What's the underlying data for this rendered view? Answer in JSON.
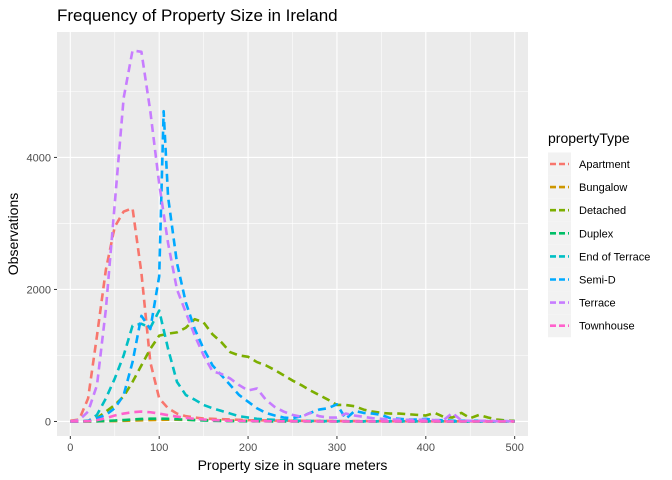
{
  "chart_data": {
    "type": "line",
    "title": "Frequency of Property Size in Ireland",
    "xlabel": "Property size in square meters",
    "ylabel": "Observations",
    "xlim": [
      -15,
      515
    ],
    "ylim": [
      -220,
      5900
    ],
    "x_ticks": [
      0,
      100,
      200,
      300,
      400,
      500
    ],
    "x_tick_labels": [
      "0",
      "100",
      "200",
      "300",
      "400",
      "500"
    ],
    "y_ticks": [
      0,
      2000,
      4000
    ],
    "y_tick_labels": [
      "0",
      "2000",
      "4000"
    ],
    "grid": true,
    "legend_position": "right",
    "legend_title": "propertyType",
    "series": [
      {
        "name": "Apartment",
        "color": "#F8766D",
        "x": [
          0,
          10,
          20,
          30,
          40,
          50,
          60,
          70,
          80,
          90,
          100,
          110,
          120,
          130,
          140,
          150,
          160,
          170,
          180,
          190,
          200,
          210,
          220,
          230,
          240,
          250,
          260,
          270,
          280,
          290,
          300,
          310,
          320,
          330,
          340,
          350,
          360,
          370,
          380,
          390,
          400,
          410,
          420,
          430,
          440,
          450,
          460,
          470,
          480,
          490,
          500
        ],
        "y": [
          10,
          30,
          350,
          1300,
          2300,
          2950,
          3180,
          3230,
          2250,
          900,
          350,
          200,
          120,
          80,
          60,
          45,
          40,
          35,
          30,
          25,
          20,
          18,
          16,
          14,
          12,
          10,
          10,
          9,
          8,
          8,
          7,
          7,
          6,
          6,
          5,
          5,
          5,
          4,
          4,
          4,
          4,
          3,
          3,
          3,
          3,
          3,
          3,
          3,
          3,
          3,
          3
        ]
      },
      {
        "name": "Bungalow",
        "color": "#CD9600",
        "x": [
          0,
          10,
          20,
          30,
          40,
          50,
          60,
          70,
          80,
          90,
          100,
          110,
          120,
          130,
          140,
          150,
          160,
          170,
          180,
          190,
          200,
          210,
          220,
          230,
          240,
          250,
          260,
          270,
          280,
          290,
          300,
          310,
          320,
          330,
          340,
          350,
          360,
          370,
          380,
          390,
          400,
          410,
          420,
          430,
          440,
          450,
          460,
          470,
          480,
          490,
          500
        ],
        "y": [
          0,
          0,
          1,
          2,
          4,
          7,
          10,
          14,
          18,
          22,
          25,
          26,
          26,
          25,
          23,
          21,
          19,
          17,
          15,
          13,
          11,
          10,
          9,
          8,
          7,
          6,
          5,
          5,
          4,
          4,
          3,
          3,
          3,
          2,
          2,
          2,
          2,
          2,
          1,
          1,
          1,
          1,
          1,
          1,
          1,
          1,
          1,
          1,
          1,
          1,
          1
        ]
      },
      {
        "name": "Detached",
        "color": "#7CAE00",
        "x": [
          0,
          10,
          20,
          30,
          40,
          50,
          60,
          70,
          80,
          90,
          100,
          110,
          120,
          130,
          140,
          150,
          160,
          170,
          180,
          190,
          200,
          210,
          220,
          230,
          240,
          250,
          260,
          270,
          280,
          290,
          300,
          310,
          320,
          330,
          340,
          350,
          360,
          370,
          380,
          390,
          400,
          410,
          420,
          430,
          440,
          450,
          460,
          470,
          480,
          490,
          500
        ],
        "y": [
          0,
          0,
          10,
          50,
          150,
          250,
          380,
          600,
          850,
          1100,
          1300,
          1330,
          1350,
          1420,
          1550,
          1500,
          1320,
          1200,
          1050,
          1000,
          980,
          900,
          850,
          780,
          700,
          620,
          550,
          470,
          400,
          330,
          250,
          250,
          230,
          180,
          150,
          130,
          120,
          120,
          110,
          100,
          90,
          130,
          70,
          60,
          130,
          50,
          100,
          60,
          30,
          15,
          10
        ]
      },
      {
        "name": "Duplex",
        "color": "#00BE67",
        "x": [
          0,
          10,
          20,
          30,
          40,
          50,
          60,
          70,
          80,
          90,
          100,
          110,
          120,
          130,
          140,
          150,
          160,
          170,
          180,
          190,
          200,
          210,
          220,
          230,
          240,
          250,
          260,
          270,
          280,
          290,
          300,
          310,
          320,
          330,
          340,
          350,
          360,
          370,
          380,
          390,
          400,
          410,
          420,
          430,
          440,
          450,
          460,
          470,
          480,
          490,
          500
        ],
        "y": [
          0,
          0,
          1,
          3,
          8,
          15,
          22,
          30,
          38,
          42,
          44,
          40,
          34,
          27,
          20,
          15,
          11,
          8,
          6,
          4,
          3,
          2,
          2,
          1,
          1,
          1,
          1,
          1,
          0,
          0,
          0,
          0,
          0,
          0,
          0,
          0,
          0,
          0,
          0,
          0,
          0,
          0,
          0,
          0,
          0,
          0,
          0,
          0,
          0,
          0,
          0
        ]
      },
      {
        "name": "End of Terrace",
        "color": "#00BFC4",
        "x": [
          0,
          10,
          20,
          30,
          40,
          50,
          60,
          70,
          80,
          90,
          100,
          110,
          120,
          130,
          140,
          150,
          160,
          170,
          180,
          190,
          200,
          210,
          220,
          230,
          240,
          250,
          260,
          270,
          280,
          290,
          300,
          310,
          320,
          330,
          340,
          350,
          360,
          370,
          380,
          390,
          400,
          410,
          420,
          430,
          440,
          450,
          460,
          470,
          480,
          490,
          500
        ],
        "y": [
          0,
          0,
          5,
          100,
          350,
          650,
          1000,
          1450,
          1480,
          1420,
          1680,
          1100,
          600,
          400,
          330,
          250,
          200,
          160,
          120,
          80,
          60,
          40,
          30,
          25,
          20,
          15,
          10,
          8,
          6,
          5,
          4,
          4,
          3,
          3,
          3,
          2,
          2,
          2,
          2,
          2,
          2,
          2,
          2,
          1,
          1,
          1,
          1,
          1,
          1,
          1,
          1
        ]
      },
      {
        "name": "Semi-D",
        "color": "#00A9FF",
        "x": [
          0,
          10,
          20,
          30,
          40,
          50,
          60,
          70,
          80,
          90,
          100,
          105,
          110,
          120,
          130,
          140,
          150,
          160,
          170,
          180,
          190,
          200,
          210,
          220,
          230,
          240,
          250,
          260,
          270,
          280,
          290,
          300,
          310,
          320,
          330,
          340,
          350,
          360,
          370,
          380,
          390,
          400,
          410,
          420,
          430,
          440,
          450,
          460,
          470,
          480,
          490,
          500
        ],
        "y": [
          0,
          0,
          10,
          50,
          100,
          200,
          400,
          900,
          1600,
          1400,
          2200,
          4700,
          3400,
          2400,
          1800,
          1400,
          1100,
          850,
          700,
          550,
          400,
          300,
          200,
          130,
          90,
          60,
          50,
          80,
          130,
          180,
          200,
          260,
          40,
          160,
          130,
          120,
          100,
          50,
          40,
          30,
          30,
          40,
          20,
          20,
          10,
          10,
          10,
          10,
          5,
          5,
          5,
          5
        ]
      },
      {
        "name": "Terrace",
        "color": "#C77CFF",
        "x": [
          0,
          10,
          20,
          30,
          40,
          50,
          60,
          70,
          80,
          90,
          100,
          110,
          120,
          130,
          140,
          150,
          160,
          170,
          180,
          190,
          200,
          210,
          220,
          230,
          240,
          250,
          260,
          270,
          280,
          290,
          300,
          310,
          320,
          330,
          340,
          350,
          360,
          370,
          380,
          390,
          400,
          410,
          420,
          430,
          440,
          450,
          460,
          470,
          480,
          490,
          500
        ],
        "y": [
          0,
          20,
          150,
          550,
          1700,
          3300,
          4900,
          5620,
          5600,
          4700,
          3600,
          2700,
          2000,
          1650,
          1300,
          1000,
          760,
          720,
          650,
          550,
          470,
          500,
          330,
          220,
          150,
          100,
          70,
          130,
          80,
          60,
          60,
          120,
          90,
          70,
          50,
          40,
          30,
          30,
          25,
          25,
          30,
          20,
          20,
          130,
          15,
          10,
          10,
          10,
          5,
          5,
          5
        ]
      },
      {
        "name": "Townhouse",
        "color": "#FF61CC",
        "x": [
          0,
          10,
          20,
          30,
          40,
          50,
          60,
          70,
          80,
          90,
          100,
          110,
          120,
          130,
          140,
          150,
          160,
          170,
          180,
          190,
          200,
          210,
          220,
          230,
          240,
          250,
          260,
          270,
          280,
          290,
          300,
          310,
          320,
          330,
          340,
          350,
          360,
          370,
          380,
          390,
          400,
          410,
          420,
          430,
          440,
          450,
          460,
          470,
          480,
          490,
          500
        ],
        "y": [
          0,
          0,
          5,
          20,
          50,
          90,
          120,
          140,
          150,
          140,
          120,
          95,
          75,
          55,
          40,
          30,
          22,
          16,
          12,
          9,
          7,
          5,
          4,
          3,
          3,
          2,
          2,
          2,
          1,
          1,
          1,
          1,
          1,
          1,
          1,
          1,
          1,
          1,
          1,
          1,
          1,
          1,
          1,
          1,
          1,
          1,
          1,
          1,
          1,
          1,
          1
        ]
      }
    ]
  }
}
